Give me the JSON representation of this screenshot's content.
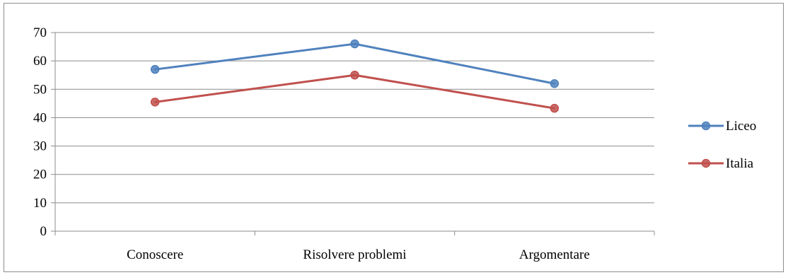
{
  "chart_data": {
    "type": "line",
    "title": "",
    "xlabel": "",
    "ylabel": "",
    "categories": [
      "Conoscere",
      "Risolvere problemi",
      "Argomentare"
    ],
    "ylim": [
      0,
      70
    ],
    "yticks": [
      "0",
      "10",
      "20",
      "30",
      "40",
      "50",
      "60",
      "70"
    ],
    "grid": true,
    "legend_position": "right",
    "series": [
      {
        "name": "Liceo",
        "color": "#4f81bd",
        "values": [
          57,
          66,
          52
        ]
      },
      {
        "name": "Italia",
        "color": "#c0504d",
        "values": [
          45.5,
          55,
          43.3
        ]
      }
    ]
  }
}
